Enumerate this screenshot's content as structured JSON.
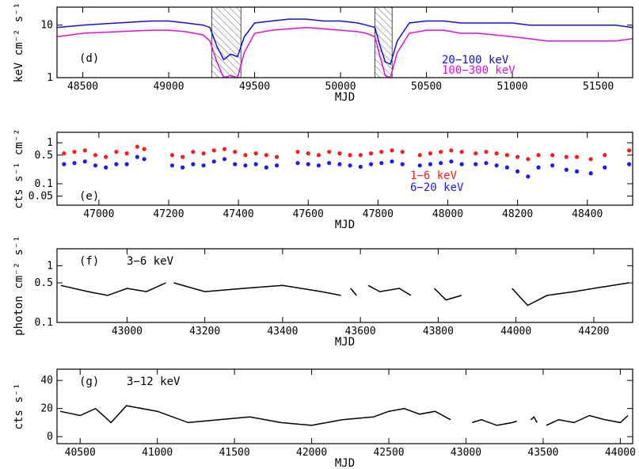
{
  "chart_data": [
    {
      "id": "d",
      "type": "line",
      "panel_label": "(d)",
      "xlabel": "MJD",
      "ylabel": "keV cm⁻² s⁻¹",
      "xlim": [
        48350,
        51700
      ],
      "ylim": [
        1,
        22
      ],
      "yscale": "log",
      "xticks": [
        48500,
        49000,
        49500,
        50000,
        50500,
        51000,
        51500
      ],
      "yticks": [
        1,
        10
      ],
      "shaded_intervals": [
        [
          49250,
          49420
        ],
        [
          50200,
          50300
        ]
      ],
      "series": [
        {
          "name": "20−100 keV",
          "color": "#1010e0",
          "x": [
            48350,
            48500,
            48700,
            48900,
            49000,
            49100,
            49200,
            49240,
            49280,
            49320,
            49360,
            49400,
            49440,
            49500,
            49600,
            49700,
            49800,
            49900,
            50000,
            50100,
            50150,
            50200,
            50230,
            50260,
            50290,
            50330,
            50400,
            50500,
            50600,
            50700,
            50800,
            50900,
            51000,
            51100,
            51200,
            51300,
            51400,
            51500,
            51600,
            51700
          ],
          "y": [
            9,
            10,
            11,
            12,
            12,
            11,
            10,
            9,
            4,
            2.2,
            2.8,
            2.5,
            6,
            11,
            12,
            13,
            13,
            12,
            12,
            11,
            10,
            9,
            4,
            2,
            1.8,
            5,
            11,
            12,
            12,
            11,
            11,
            11,
            11,
            10,
            10,
            10,
            10,
            10,
            10,
            9
          ]
        },
        {
          "name": "100−300 keV",
          "color": "#e010e0",
          "x": [
            48350,
            48500,
            48700,
            48900,
            49000,
            49100,
            49200,
            49240,
            49280,
            49320,
            49360,
            49400,
            49440,
            49500,
            49600,
            49700,
            49800,
            49900,
            50000,
            50100,
            50150,
            50200,
            50230,
            50260,
            50290,
            50330,
            50400,
            50500,
            50600,
            50700,
            50800,
            50900,
            51000,
            51100,
            51200,
            51300,
            51400,
            51500,
            51600,
            51700
          ],
          "y": [
            6,
            7,
            7.5,
            8,
            8,
            7.5,
            6.5,
            5,
            2,
            1,
            1.1,
            1,
            3,
            7,
            8,
            8.5,
            9,
            8.5,
            8,
            7.5,
            7,
            6,
            2.5,
            1.1,
            1,
            3,
            7,
            8,
            8,
            7,
            7,
            6.5,
            6,
            5.5,
            5,
            5,
            5,
            5,
            5,
            5.5
          ]
        }
      ]
    },
    {
      "id": "e",
      "type": "scatter",
      "panel_label": "(e)",
      "xlabel": "MJD",
      "ylabel": "cts s⁻¹ cm⁻²",
      "xlim": [
        46880,
        48530
      ],
      "ylim": [
        0.03,
        1.8
      ],
      "yscale": "log",
      "xticks": [
        47000,
        47200,
        47400,
        47600,
        47800,
        48000,
        48200,
        48400
      ],
      "yticks": [
        0.05,
        0.1,
        0.5,
        1
      ],
      "series": [
        {
          "name": "1−6 keV",
          "color": "#ff1a1a",
          "x": [
            46900,
            46930,
            46960,
            46990,
            47020,
            47050,
            47080,
            47110,
            47130,
            47210,
            47240,
            47270,
            47300,
            47330,
            47360,
            47390,
            47420,
            47450,
            47480,
            47510,
            47570,
            47600,
            47630,
            47660,
            47690,
            47720,
            47750,
            47780,
            47810,
            47840,
            47870,
            47920,
            47950,
            47980,
            48010,
            48040,
            48080,
            48110,
            48140,
            48170,
            48200,
            48230,
            48260,
            48300,
            48340,
            48370,
            48410,
            48450,
            48520
          ],
          "y": [
            0.55,
            0.6,
            0.65,
            0.5,
            0.45,
            0.6,
            0.55,
            0.8,
            0.7,
            0.5,
            0.45,
            0.6,
            0.55,
            0.65,
            0.7,
            0.6,
            0.5,
            0.55,
            0.5,
            0.45,
            0.6,
            0.55,
            0.5,
            0.6,
            0.55,
            0.5,
            0.5,
            0.55,
            0.6,
            0.65,
            0.6,
            0.5,
            0.55,
            0.6,
            0.65,
            0.6,
            0.55,
            0.6,
            0.55,
            0.5,
            0.45,
            0.4,
            0.5,
            0.5,
            0.45,
            0.45,
            0.4,
            0.5,
            0.65
          ]
        },
        {
          "name": "6−20 keV",
          "color": "#1a1aff",
          "x": [
            46900,
            46930,
            46960,
            46990,
            47020,
            47050,
            47080,
            47110,
            47130,
            47210,
            47240,
            47270,
            47300,
            47330,
            47360,
            47390,
            47420,
            47450,
            47480,
            47510,
            47570,
            47600,
            47630,
            47660,
            47690,
            47720,
            47750,
            47780,
            47810,
            47840,
            47870,
            47920,
            47950,
            47980,
            48010,
            48040,
            48080,
            48110,
            48140,
            48170,
            48200,
            48230,
            48260,
            48300,
            48340,
            48370,
            48410,
            48450,
            48520
          ],
          "y": [
            0.3,
            0.32,
            0.35,
            0.28,
            0.25,
            0.3,
            0.3,
            0.45,
            0.4,
            0.28,
            0.25,
            0.3,
            0.28,
            0.35,
            0.4,
            0.3,
            0.28,
            0.3,
            0.25,
            0.28,
            0.32,
            0.3,
            0.28,
            0.32,
            0.3,
            0.28,
            0.26,
            0.3,
            0.32,
            0.35,
            0.3,
            0.28,
            0.3,
            0.32,
            0.35,
            0.3,
            0.3,
            0.32,
            0.28,
            0.25,
            0.2,
            0.15,
            0.25,
            0.28,
            0.22,
            0.2,
            0.18,
            0.25,
            0.3
          ]
        }
      ]
    },
    {
      "id": "f",
      "type": "line",
      "panel_label": "(f)",
      "energy_label": "3−6 keV",
      "xlabel": "MJD",
      "ylabel": "photon cm⁻² s⁻¹",
      "xlim": [
        42820,
        44300
      ],
      "ylim": [
        0.1,
        2.0
      ],
      "yscale": "log",
      "xticks": [
        43000,
        43200,
        43400,
        43600,
        43800,
        44000,
        44200
      ],
      "yticks": [
        0.1,
        0.5,
        1
      ],
      "segments": [
        {
          "x": [
            42830,
            42900,
            42950,
            43000,
            43050,
            43100
          ],
          "y": [
            0.45,
            0.35,
            0.3,
            0.4,
            0.35,
            0.5
          ]
        },
        {
          "x": [
            43120,
            43200,
            43300,
            43400,
            43500,
            43550
          ],
          "y": [
            0.5,
            0.35,
            0.4,
            0.45,
            0.35,
            0.3
          ]
        },
        {
          "x": [
            43575,
            43590
          ],
          "y": [
            0.4,
            0.3
          ]
        },
        {
          "x": [
            43620,
            43650,
            43700,
            43730
          ],
          "y": [
            0.45,
            0.35,
            0.4,
            0.3
          ]
        },
        {
          "x": [
            43790,
            43820,
            43860
          ],
          "y": [
            0.4,
            0.25,
            0.3
          ]
        },
        {
          "x": [
            43990,
            44030,
            44080,
            44150,
            44200,
            44290
          ],
          "y": [
            0.4,
            0.2,
            0.3,
            0.35,
            0.4,
            0.5
          ]
        }
      ]
    },
    {
      "id": "g",
      "type": "line",
      "panel_label": "(g)",
      "energy_label": "3−12 keV",
      "xlabel": "MJD",
      "ylabel": "cts s⁻¹",
      "xlim": [
        40350,
        44080
      ],
      "ylim": [
        -5,
        48
      ],
      "yscale": "linear",
      "xticks": [
        40500,
        41000,
        41500,
        42000,
        42500,
        43000,
        43500,
        44000
      ],
      "yticks": [
        0,
        20,
        40
      ],
      "segments": [
        {
          "x": [
            40370,
            40500,
            40600,
            40700,
            40800,
            41000,
            41200,
            41400,
            41600,
            41800,
            42000,
            42200,
            42400,
            42500,
            42600,
            42700,
            42800,
            42900
          ],
          "y": [
            18,
            15,
            20,
            10,
            22,
            18,
            10,
            12,
            14,
            10,
            8,
            12,
            14,
            18,
            20,
            16,
            18,
            12
          ]
        },
        {
          "x": [
            43040,
            43100,
            43200,
            43300,
            43330
          ],
          "y": [
            10,
            12,
            8,
            10,
            11
          ]
        },
        {
          "x": [
            43420,
            43440,
            43460
          ],
          "y": [
            12,
            14,
            10
          ]
        },
        {
          "x": [
            43520,
            43600,
            43700,
            43800,
            43900,
            44000,
            44050
          ],
          "y": [
            8,
            12,
            10,
            15,
            12,
            10,
            15
          ]
        }
      ]
    }
  ]
}
